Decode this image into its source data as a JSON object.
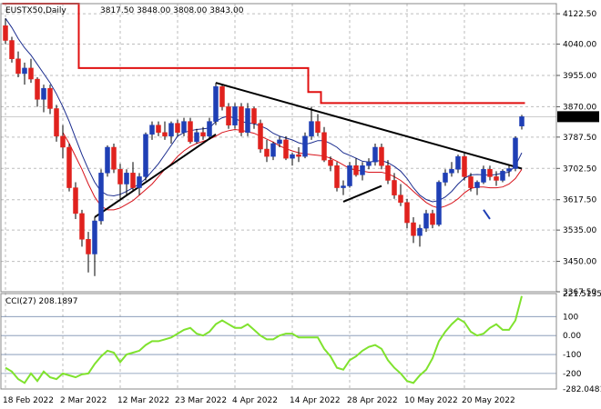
{
  "header": {
    "symbol_line": "EUSTX50,Daily",
    "ohlc": "3817.50 3848.00 3808.00 3843.00"
  },
  "price_axis": {
    "ticks": [
      "4122.50",
      "4040.00",
      "3955.00",
      "3870.00",
      "3787.50",
      "3702.50",
      "3617.50",
      "3535.00",
      "3450.00",
      "3367.50"
    ],
    "current_price": "3843.00"
  },
  "cci_panel": {
    "label": "CCI(27) 208.1897",
    "ticks": [
      "221.5135",
      "100",
      "0.00",
      "-100",
      "-200",
      "-282.0481"
    ]
  },
  "dates": [
    "18 Feb 2022",
    "2 Mar 2022",
    "12 Mar 2022",
    "23 Mar 2022",
    "4 Apr 2022",
    "14 Apr 2022",
    "28 Apr 2022",
    "10 May 2022",
    "20 May 2022"
  ],
  "colors": {
    "bull": "#1f3fb5",
    "bear": "#e0221e",
    "fast_ma": "#1b2d8f",
    "slow_ma": "#d8131b",
    "stop_line": "#e01010",
    "trendline": "#000000",
    "cci_line": "#7fe22e",
    "grid": "#bdbdbd"
  },
  "chart_data": {
    "type": "candlestick",
    "ylim": [
      3367.5,
      4150
    ],
    "cci_ylim": [
      -282.0481,
      221.5135
    ],
    "candles": [
      [
        4090,
        4110,
        4040,
        4050
      ],
      [
        4050,
        4060,
        3990,
        4000
      ],
      [
        4000,
        4020,
        3950,
        3960
      ],
      [
        3960,
        3990,
        3930,
        3975
      ],
      [
        3975,
        4000,
        3935,
        3945
      ],
      [
        3945,
        3950,
        3870,
        3890
      ],
      [
        3890,
        3930,
        3855,
        3920
      ],
      [
        3920,
        3930,
        3850,
        3865
      ],
      [
        3865,
        3875,
        3775,
        3790
      ],
      [
        3790,
        3820,
        3730,
        3760
      ],
      [
        3760,
        3770,
        3640,
        3650
      ],
      [
        3650,
        3665,
        3565,
        3580
      ],
      [
        3580,
        3590,
        3490,
        3510
      ],
      [
        3510,
        3530,
        3420,
        3470
      ],
      [
        3470,
        3570,
        3410,
        3560
      ],
      [
        3560,
        3700,
        3550,
        3690
      ],
      [
        3690,
        3765,
        3680,
        3760
      ],
      [
        3760,
        3770,
        3690,
        3700
      ],
      [
        3700,
        3715,
        3620,
        3660
      ],
      [
        3660,
        3700,
        3630,
        3690
      ],
      [
        3690,
        3720,
        3640,
        3650
      ],
      [
        3650,
        3690,
        3630,
        3680
      ],
      [
        3680,
        3800,
        3670,
        3795
      ],
      [
        3795,
        3830,
        3780,
        3820
      ],
      [
        3820,
        3830,
        3790,
        3800
      ],
      [
        3800,
        3830,
        3780,
        3790
      ],
      [
        3790,
        3830,
        3770,
        3825
      ],
      [
        3825,
        3835,
        3790,
        3800
      ],
      [
        3800,
        3840,
        3790,
        3830
      ],
      [
        3830,
        3840,
        3770,
        3775
      ],
      [
        3775,
        3810,
        3770,
        3800
      ],
      [
        3800,
        3815,
        3780,
        3790
      ],
      [
        3790,
        3840,
        3780,
        3830
      ],
      [
        3830,
        3935,
        3820,
        3925
      ],
      [
        3925,
        3930,
        3860,
        3870
      ],
      [
        3870,
        3880,
        3810,
        3820
      ],
      [
        3820,
        3880,
        3810,
        3870
      ],
      [
        3870,
        3880,
        3790,
        3800
      ],
      [
        3800,
        3880,
        3790,
        3865
      ],
      [
        3865,
        3870,
        3810,
        3825
      ],
      [
        3825,
        3835,
        3745,
        3755
      ],
      [
        3755,
        3780,
        3720,
        3735
      ],
      [
        3735,
        3775,
        3725,
        3770
      ],
      [
        3770,
        3790,
        3760,
        3780
      ],
      [
        3780,
        3790,
        3725,
        3730
      ],
      [
        3730,
        3745,
        3710,
        3740
      ],
      [
        3740,
        3760,
        3720,
        3735
      ],
      [
        3735,
        3800,
        3730,
        3790
      ],
      [
        3790,
        3870,
        3780,
        3830
      ],
      [
        3830,
        3850,
        3790,
        3800
      ],
      [
        3800,
        3815,
        3720,
        3725
      ],
      [
        3725,
        3735,
        3695,
        3710
      ],
      [
        3710,
        3720,
        3640,
        3650
      ],
      [
        3650,
        3670,
        3630,
        3655
      ],
      [
        3655,
        3720,
        3650,
        3710
      ],
      [
        3710,
        3730,
        3680,
        3685
      ],
      [
        3685,
        3720,
        3670,
        3710
      ],
      [
        3710,
        3730,
        3700,
        3720
      ],
      [
        3720,
        3770,
        3710,
        3760
      ],
      [
        3760,
        3770,
        3700,
        3710
      ],
      [
        3710,
        3725,
        3660,
        3670
      ],
      [
        3670,
        3690,
        3620,
        3630
      ],
      [
        3630,
        3660,
        3600,
        3610
      ],
      [
        3610,
        3620,
        3540,
        3555
      ],
      [
        3555,
        3570,
        3500,
        3520
      ],
      [
        3520,
        3550,
        3490,
        3540
      ],
      [
        3540,
        3590,
        3530,
        3580
      ],
      [
        3580,
        3590,
        3540,
        3550
      ],
      [
        3550,
        3670,
        3545,
        3665
      ],
      [
        3665,
        3700,
        3655,
        3690
      ],
      [
        3690,
        3720,
        3680,
        3700
      ],
      [
        3700,
        3740,
        3690,
        3735
      ],
      [
        3735,
        3745,
        3670,
        3680
      ],
      [
        3680,
        3690,
        3640,
        3650
      ],
      [
        3650,
        3670,
        3630,
        3665
      ],
      [
        3665,
        3710,
        3660,
        3700
      ],
      [
        3700,
        3710,
        3670,
        3680
      ],
      [
        3680,
        3695,
        3655,
        3670
      ],
      [
        3670,
        3700,
        3665,
        3695
      ],
      [
        3695,
        3710,
        3680,
        3702
      ],
      [
        3702,
        3790,
        3695,
        3785
      ],
      [
        3817.5,
        3848,
        3808,
        3843
      ]
    ],
    "series": [
      {
        "name": "fast_ma",
        "values": [
          4110,
          4085,
          4055,
          4030,
          4010,
          3985,
          3960,
          3935,
          3905,
          3870,
          3830,
          3785,
          3740,
          3700,
          3665,
          3640,
          3630,
          3628,
          3632,
          3640,
          3650,
          3660,
          3675,
          3695,
          3715,
          3740,
          3765,
          3790,
          3800,
          3805,
          3808,
          3810,
          3812,
          3830,
          3840,
          3845,
          3838,
          3830,
          3826,
          3824,
          3818,
          3810,
          3798,
          3790,
          3785,
          3780,
          3772,
          3768,
          3772,
          3778,
          3778,
          3770,
          3760,
          3745,
          3738,
          3730,
          3722,
          3720,
          3722,
          3724,
          3718,
          3708,
          3695,
          3675,
          3650,
          3630,
          3618,
          3612,
          3615,
          3625,
          3640,
          3660,
          3676,
          3685,
          3686,
          3685,
          3684,
          3686,
          3690,
          3692,
          3710,
          3745
        ]
      },
      {
        "name": "slow_ma",
        "values": [
          null,
          null,
          null,
          null,
          null,
          null,
          null,
          null,
          null,
          3800,
          3770,
          3735,
          3700,
          3660,
          3625,
          3600,
          3590,
          3590,
          3595,
          3605,
          3615,
          3630,
          3645,
          3660,
          3680,
          3700,
          3715,
          3735,
          3750,
          3762,
          3770,
          3776,
          3782,
          3790,
          3800,
          3805,
          3808,
          3806,
          3802,
          3798,
          3790,
          3782,
          3774,
          3764,
          3756,
          3750,
          3745,
          3742,
          3740,
          3738,
          3736,
          3730,
          3722,
          3712,
          3702,
          3698,
          3695,
          3692,
          3692,
          3692,
          3688,
          3680,
          3670,
          3656,
          3640,
          3625,
          3610,
          3600,
          3595,
          3600,
          3608,
          3620,
          3636,
          3648,
          3652,
          3652,
          3650,
          3650,
          3652,
          3660,
          3675,
          3700
        ]
      },
      {
        "name": "stop_line",
        "values": [
          4150,
          4150,
          4150,
          4150,
          4150,
          4150,
          4150,
          4150,
          4150,
          4150,
          4150,
          4150,
          3975,
          3975,
          3975,
          3975,
          3975,
          3975,
          3975,
          3975,
          3975,
          3975,
          3975,
          3975,
          3975,
          3975,
          3975,
          3975,
          3975,
          3975,
          3975,
          3975,
          3975,
          3975,
          3975,
          3975,
          3975,
          3975,
          3975,
          3975,
          3975,
          3975,
          3975,
          3975,
          3975,
          3975,
          3975,
          3975,
          3910,
          3910,
          3880,
          3880,
          3880,
          3880,
          3880,
          3880,
          3880,
          3880,
          3880,
          3880,
          3880,
          3880,
          3880,
          3880,
          3880,
          3880,
          3880,
          3880,
          3880,
          3880,
          3880,
          3880,
          3880,
          3880,
          3880,
          3880,
          3880,
          3880,
          3880,
          3880,
          3880,
          3880
        ]
      },
      {
        "name": "cci",
        "values": [
          -170,
          -190,
          -230,
          -250,
          -200,
          -240,
          -190,
          -220,
          -230,
          -200,
          -210,
          -220,
          -205,
          -200,
          -150,
          -110,
          -80,
          -90,
          -140,
          -100,
          -90,
          -80,
          -50,
          -30,
          -30,
          -20,
          -10,
          10,
          30,
          40,
          10,
          0,
          20,
          60,
          80,
          60,
          40,
          40,
          60,
          30,
          0,
          -20,
          -20,
          0,
          10,
          10,
          -10,
          -10,
          -10,
          -10,
          -70,
          -110,
          -170,
          -180,
          -130,
          -110,
          -80,
          -60,
          -50,
          -70,
          -130,
          -170,
          -200,
          -240,
          -250,
          -210,
          -180,
          -120,
          -30,
          20,
          60,
          90,
          70,
          20,
          0,
          10,
          40,
          60,
          30,
          30,
          80,
          208
        ]
      }
    ],
    "trendlines": [
      [
        [
          14,
          3570
        ],
        [
          33,
          3795
        ]
      ],
      [
        [
          33,
          3935
        ],
        [
          81,
          3702
        ]
      ],
      [
        [
          53,
          3612
        ],
        [
          59,
          3655
        ]
      ],
      [
        [
          75,
          3590
        ],
        [
          76,
          3565
        ]
      ]
    ]
  }
}
